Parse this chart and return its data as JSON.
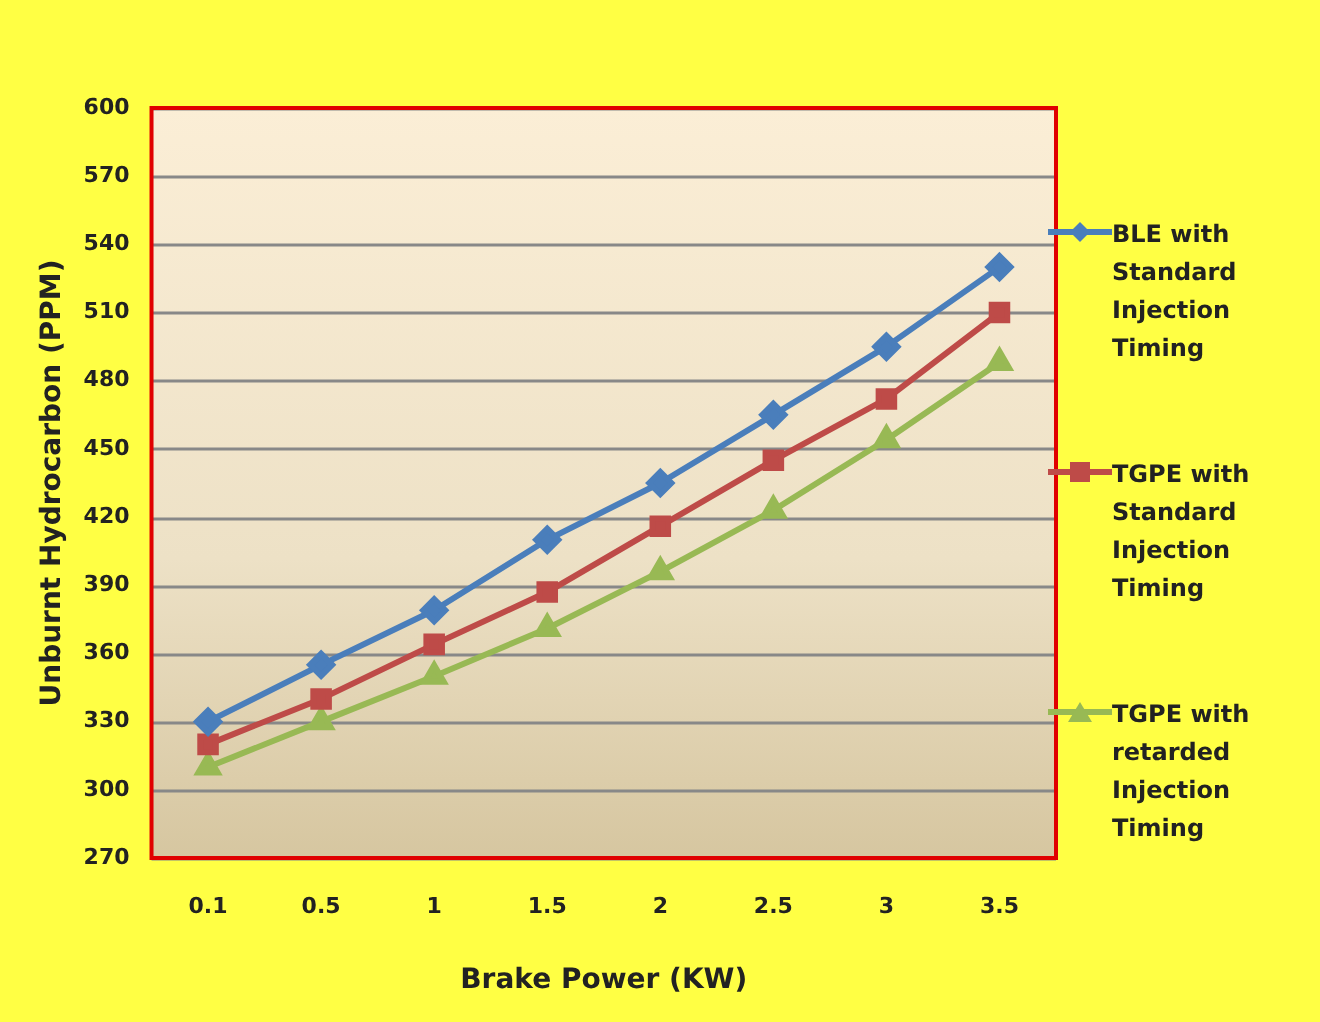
{
  "chart_data": {
    "type": "line",
    "xlabel": "Brake Power (KW)",
    "ylabel": "Unburnt Hydrocarbon (PPM)",
    "categories": [
      "0.1",
      "0.5",
      "1",
      "1.5",
      "2",
      "2.5",
      "3",
      "3.5"
    ],
    "ylim": [
      270,
      600
    ],
    "yticks": [
      270,
      300,
      330,
      360,
      390,
      420,
      450,
      480,
      510,
      540,
      570,
      600
    ],
    "grid": "y",
    "legend": "right",
    "series": [
      {
        "name": "BLE with Standard Injection Timing",
        "color": "#4a7ebb",
        "marker": "diamond",
        "values": [
          330,
          355,
          379,
          410,
          435,
          465,
          495,
          530
        ]
      },
      {
        "name": "TGPE with Standard Injection Timing",
        "color": "#be4b48",
        "marker": "square",
        "values": [
          320,
          340,
          364,
          387,
          416,
          445,
          472,
          510
        ]
      },
      {
        "name": "TGPE with retarded Injection Timing",
        "color": "#98b954",
        "marker": "triangle",
        "values": [
          310,
          330,
          350,
          371,
          396,
          423,
          454,
          488
        ]
      }
    ]
  }
}
